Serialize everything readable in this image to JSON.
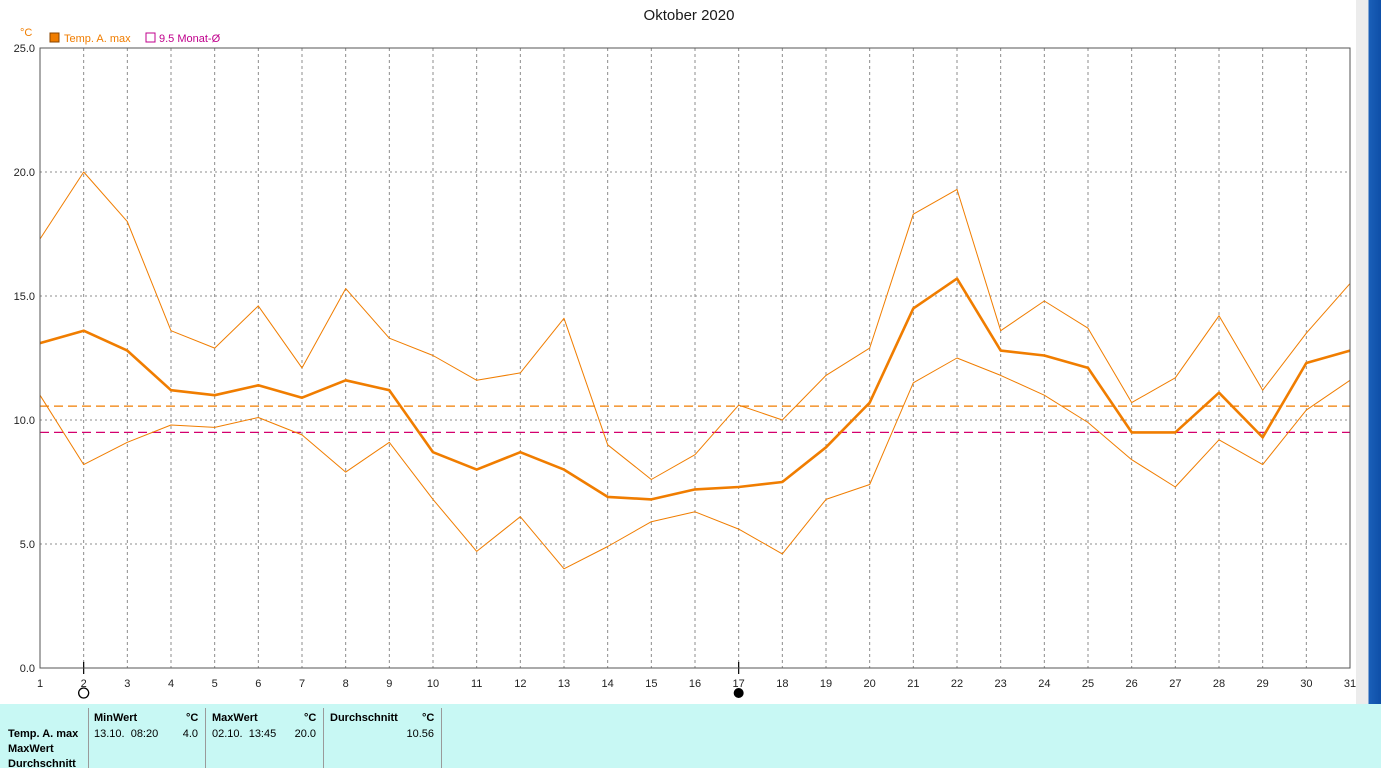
{
  "title": "Oktober 2020",
  "unit_label": "°C",
  "chart_data": {
    "type": "line",
    "title": "Oktober 2020",
    "ylabel": "°C",
    "xlim": [
      1,
      31
    ],
    "ylim": [
      0,
      25
    ],
    "yticks": [
      "0.0",
      "5.0",
      "10.0",
      "15.0",
      "20.0",
      "25.0"
    ],
    "xticks": [
      "1",
      "2",
      "3",
      "4",
      "5",
      "6",
      "7",
      "8",
      "9",
      "10",
      "11",
      "12",
      "13",
      "14",
      "15",
      "16",
      "17",
      "18",
      "19",
      "20",
      "21",
      "22",
      "23",
      "24",
      "25",
      "26",
      "27",
      "28",
      "29",
      "30",
      "31"
    ],
    "grid": true,
    "legend_position": "top-left",
    "x": [
      1,
      2,
      3,
      4,
      5,
      6,
      7,
      8,
      9,
      10,
      11,
      12,
      13,
      14,
      15,
      16,
      17,
      18,
      19,
      20,
      21,
      22,
      23,
      24,
      25,
      26,
      27,
      28,
      29,
      30,
      31
    ],
    "series": [
      {
        "name": "Temp. A. max",
        "color": "#f07d00",
        "style": "thick",
        "values": [
          13.1,
          13.6,
          12.8,
          11.2,
          11.0,
          11.4,
          10.9,
          11.6,
          11.2,
          8.7,
          8.0,
          8.7,
          8.0,
          6.9,
          6.8,
          7.2,
          7.3,
          7.5,
          8.9,
          10.7,
          14.5,
          15.7,
          12.8,
          12.6,
          12.1,
          9.5,
          9.5,
          11.1,
          9.3,
          12.3,
          12.8
        ]
      },
      {
        "color": "#f07d00",
        "style": "thin",
        "values": [
          17.3,
          20.0,
          18.0,
          13.6,
          12.9,
          14.6,
          12.1,
          15.3,
          13.3,
          12.6,
          11.6,
          11.9,
          14.1,
          9.0,
          7.6,
          8.6,
          10.6,
          10.0,
          11.8,
          12.9,
          18.3,
          19.3,
          13.6,
          14.8,
          13.7,
          10.7,
          11.7,
          14.2,
          11.2,
          13.5,
          15.5
        ]
      },
      {
        "color": "#f07d00",
        "style": "thin",
        "values": [
          11.0,
          8.2,
          9.1,
          9.8,
          9.7,
          10.1,
          9.4,
          7.9,
          9.1,
          6.8,
          4.7,
          6.1,
          4.0,
          4.9,
          5.9,
          6.3,
          5.6,
          4.6,
          6.8,
          7.4,
          11.5,
          12.5,
          11.8,
          11.0,
          9.9,
          8.4,
          7.3,
          9.2,
          8.2,
          10.4,
          11.6
        ]
      }
    ],
    "reference_lines": [
      {
        "value": 10.56,
        "color": "#f07d00",
        "style": "dashed"
      },
      {
        "name": "9.5 Monat-Ø",
        "value": 9.5,
        "color": "#d4006e",
        "style": "dashed"
      }
    ],
    "markers": [
      {
        "x": 2,
        "symbol": "open-circle"
      },
      {
        "x": 17,
        "symbol": "filled-circle"
      }
    ]
  },
  "legend": {
    "item1": {
      "label": "Temp. A. max",
      "color": "#f07d00"
    },
    "item2": {
      "label": "9.5 Monat-Ø",
      "color": "#c0008c"
    }
  },
  "stats": {
    "row_labels": [
      "Temp. A. max",
      "MaxWert",
      "Durchschnitt"
    ],
    "min": {
      "header": "MinWert",
      "unit": "°C",
      "datetime": "13.10.  08:20",
      "value": "4.0"
    },
    "max": {
      "header": "MaxWert",
      "unit": "°C",
      "datetime": "02.10.  13:45",
      "value": "20.0"
    },
    "avg": {
      "header": "Durchschnitt",
      "unit": "°C",
      "value": "10.56"
    }
  }
}
